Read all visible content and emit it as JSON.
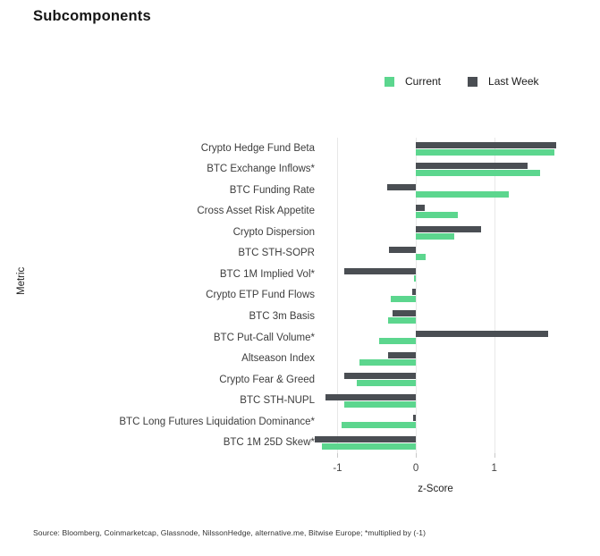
{
  "title": "Subcomponents",
  "axes": {
    "xlabel": "z-Score",
    "ylabel": "Metric"
  },
  "source_note": "Source: Bloomberg, Coinmarketcap, Glassnode, NilssonHedge, alternative.me, Bitwise Europe; *multiplied by (-1)",
  "colors": {
    "current": "#5cd68e",
    "last_week": "#4a4e53",
    "gridline": "#e8e8e8",
    "tick_mark": "#c9c9c9"
  },
  "chart_data": {
    "type": "bar",
    "orientation": "horizontal",
    "title": "Subcomponents",
    "xlabel": "z-Score",
    "ylabel": "Metric",
    "xlim": [
      -1.45,
      1.95
    ],
    "xticks": [
      -1,
      0,
      1
    ],
    "grid": "vertical-only",
    "legend_position": "top-right",
    "categories": [
      "Crypto Hedge Fund Beta",
      "BTC Exchange Inflows*",
      "BTC Funding Rate",
      "Cross Asset Risk Appetite",
      "Crypto Dispersion",
      "BTC STH-SOPR",
      "BTC 1M Implied Vol*",
      "Crypto ETP Fund Flows",
      "BTC 3m Basis",
      "BTC Put-Call Volume*",
      "Altseason Index",
      "Crypto Fear & Greed",
      "BTC STH-NUPL",
      "BTC Long Futures Liquidation Dominance*",
      "BTC 1M 25D Skew*"
    ],
    "series": [
      {
        "name": "Current",
        "color": "#5cd68e",
        "values": [
          1.77,
          1.59,
          1.18,
          0.54,
          0.49,
          0.13,
          -0.02,
          -0.32,
          -0.35,
          -0.47,
          -0.72,
          -0.75,
          -0.91,
          -0.95,
          -1.2
        ]
      },
      {
        "name": "Last Week",
        "color": "#4a4e53",
        "values": [
          1.79,
          1.42,
          -0.37,
          0.11,
          0.83,
          -0.34,
          -0.91,
          -0.05,
          -0.3,
          1.69,
          -0.36,
          -0.91,
          -1.15,
          -0.03,
          -1.29
        ]
      }
    ]
  }
}
